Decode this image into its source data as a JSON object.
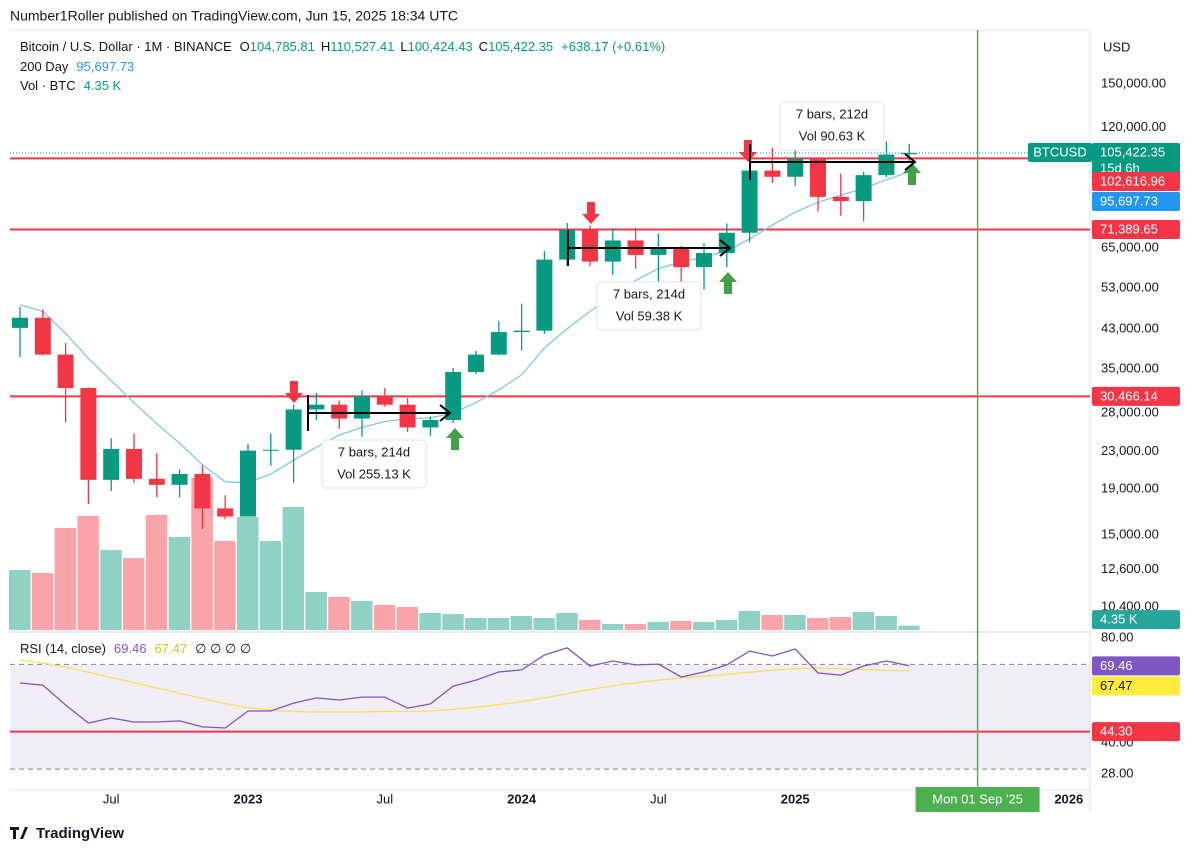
{
  "header": "Number1Roller published on TradingView.com, Jun 15, 2025 18:34 UTC",
  "footer": "TradingView",
  "currency": "USD",
  "chart_data": {
    "type": "candlestick",
    "legend": {
      "symbol": "Bitcoin / U.S. Dollar · 1M · BINANCE",
      "o_label": "O",
      "open": "104,785.81",
      "h_label": "H",
      "high": "110,527.41",
      "l_label": "L",
      "low": "100,424.43",
      "c_label": "C",
      "close": "105,422.35",
      "change": "+638.17 (+0.61%)"
    },
    "categories": [
      null,
      null,
      null,
      null,
      "Jul",
      null,
      null,
      null,
      null,
      null,
      "2023",
      null,
      null,
      null,
      null,
      null,
      "Jul",
      null,
      null,
      null,
      null,
      null,
      "2024",
      null,
      null,
      null,
      null,
      null,
      "Jul",
      null,
      null,
      null,
      null,
      null,
      "2025",
      null,
      null,
      null,
      null,
      null,
      null,
      null,
      "Mon 01 Sep '25",
      null,
      null,
      null,
      "2026"
    ],
    "open": [
      43200,
      45500,
      37700,
      31800,
      19900,
      23300,
      20000,
      19400,
      20500,
      17200,
      16500,
      23100,
      23200,
      28500,
      29200,
      27200,
      30500,
      29200,
      26000,
      27000,
      34500,
      37700,
      42300,
      42600,
      61200,
      71300,
      60600,
      67500,
      62700,
      64600,
      58900,
      63300,
      70200,
      96400,
      93400,
      102400,
      84300,
      82500,
      94200,
      104785.81,
      null,
      null,
      null,
      null,
      null,
      null,
      null
    ],
    "high": [
      48100,
      47400,
      40000,
      31900,
      24600,
      25200,
      22800,
      21000,
      21400,
      18400,
      23900,
      25200,
      29200,
      31000,
      29800,
      31400,
      31800,
      30200,
      27500,
      35200,
      38400,
      44700,
      48900,
      63900,
      73800,
      72800,
      71900,
      72000,
      70000,
      65600,
      66500,
      73600,
      99800,
      108300,
      109600,
      102500,
      95000,
      95800,
      111900,
      110527.41,
      null,
      null,
      null,
      null,
      null,
      null,
      null
    ],
    "low": [
      37200,
      37600,
      26700,
      17600,
      18800,
      19600,
      18200,
      18200,
      15500,
      16300,
      16500,
      21400,
      19600,
      27000,
      25800,
      24800,
      28900,
      25400,
      24900,
      26600,
      34100,
      37600,
      38500,
      41900,
      59300,
      59200,
      56600,
      58400,
      53500,
      49100,
      52500,
      58900,
      66800,
      90500,
      89200,
      78200,
      76600,
      74400,
      93300,
      100424.43,
      null,
      null,
      null,
      null,
      null,
      null,
      null
    ],
    "close": [
      45500,
      37700,
      31800,
      19900,
      23300,
      20000,
      19400,
      20500,
      17200,
      16500,
      23100,
      23200,
      28500,
      29200,
      27200,
      30500,
      29200,
      26000,
      27000,
      34500,
      37700,
      42300,
      42600,
      61200,
      71300,
      60600,
      67500,
      62700,
      64600,
      58900,
      63300,
      70200,
      96400,
      93400,
      102400,
      84300,
      82500,
      94200,
      104600,
      105422.35,
      null,
      null,
      null,
      null,
      null,
      null,
      null
    ],
    "up_color": "#089981",
    "down_color": "#f23645",
    "ylim": [
      9250,
      197500
    ],
    "log_scale": true,
    "yticks": [
      {
        "value": 150000,
        "label": "150,000.00"
      },
      {
        "value": 120000,
        "label": "120,000.00"
      },
      {
        "value": 65000,
        "label": "65,000.00"
      },
      {
        "value": 53000,
        "label": "53,000.00"
      },
      {
        "value": 43000,
        "label": "43,000.00"
      },
      {
        "value": 35000,
        "label": "35,000.00"
      },
      {
        "value": 28000,
        "label": "28,000.00"
      },
      {
        "value": 23000,
        "label": "23,000.00"
      },
      {
        "value": 19000,
        "label": "19,000.00"
      },
      {
        "value": 15000,
        "label": "15,000.00"
      },
      {
        "value": 12600,
        "label": "12,600.00"
      },
      {
        "value": 10400,
        "label": "10,400.00"
      }
    ],
    "ma": {
      "name": "200 Day",
      "color": "#7fc7e0",
      "label_color": "#2196f3",
      "value_label": "95,697.73",
      "values": [
        48600,
        47000,
        42000,
        37000,
        33000,
        29500,
        26500,
        24000,
        21500,
        19700,
        19600,
        20500,
        22000,
        23500,
        25000,
        26000,
        26800,
        27200,
        27300,
        28000,
        29500,
        31500,
        34000,
        39000,
        43000,
        47000,
        51000,
        55000,
        58500,
        60500,
        62000,
        64000,
        68000,
        73000,
        78000,
        82000,
        85000,
        88000,
        92000,
        95697.73,
        null,
        null,
        null,
        null,
        null,
        null,
        null
      ]
    },
    "volume": {
      "name": "Vol · BTC",
      "value_label": "4.35 K",
      "ylim": [
        0,
        160
      ],
      "values": [
        60,
        57,
        102,
        114,
        80,
        72,
        115,
        93,
        152,
        89,
        113,
        89,
        123,
        38,
        33,
        29,
        25,
        23,
        17,
        16,
        12,
        12,
        14,
        12,
        17,
        10,
        6,
        6,
        8,
        9,
        8,
        10,
        19,
        15,
        15,
        12,
        13,
        18,
        14,
        4.35,
        null,
        null,
        null,
        null,
        null,
        null,
        null
      ]
    },
    "levels": [
      {
        "value": 102616.96,
        "label": "102,616.96"
      },
      {
        "value": 71389.65,
        "label": "71,389.65"
      },
      {
        "value": 30466.14,
        "label": "30,466.14"
      }
    ],
    "level_color": "#f23645",
    "last_price": {
      "symbol": "BTCUSD",
      "value": 105422.35,
      "label": "105,422.35",
      "countdown": "15d 6h"
    },
    "marker_color": "#4caf50",
    "measures": [
      {
        "bars": "7 bars, 214d",
        "vol": "Vol 255.13 K"
      },
      {
        "bars": "7 bars, 214d",
        "vol": "Vol 59.38 K"
      },
      {
        "bars": "7 bars, 212d",
        "vol": "Vol 90.63 K"
      }
    ],
    "rsi": {
      "title": "RSI (14, close)",
      "color": "#7e57c2",
      "value_label": "69.46",
      "ma_color": "#f2e05a",
      "ma_label_color": "#ffeb3b",
      "ma_value_label": "67.47",
      "extra": "∅ ∅ ∅ ∅",
      "level": {
        "value": 44.3,
        "label": "44.30"
      },
      "bands": [
        70,
        30
      ],
      "ylim": [
        22,
        82
      ],
      "yticks": [
        {
          "value": 80,
          "label": "80.00"
        },
        {
          "value": 40,
          "label": "40.00"
        },
        {
          "value": 28,
          "label": "28.00"
        }
      ],
      "values": [
        62.9,
        62.1,
        54.5,
        47.6,
        49.5,
        48.0,
        48.0,
        48.4,
        46.1,
        45.7,
        52.2,
        52.2,
        55.2,
        57.2,
        56.4,
        57.5,
        57.5,
        53.3,
        54.9,
        61.7,
        64.0,
        67.1,
        67.9,
        73.6,
        76.3,
        69.4,
        71.3,
        69.8,
        70.1,
        65.2,
        67.1,
        69.8,
        75.1,
        73.2,
        75.9,
        66.7,
        65.9,
        69.4,
        71.3,
        69.46,
        null,
        null,
        null,
        null,
        null,
        null,
        null
      ],
      "ma_values": [
        71.7,
        70.5,
        69.0,
        67.0,
        65.0,
        63.0,
        61.0,
        59.0,
        57.0,
        55.0,
        53.5,
        52.5,
        52.0,
        51.8,
        51.8,
        51.8,
        52.0,
        52.0,
        52.2,
        52.8,
        53.6,
        54.6,
        55.8,
        57.2,
        58.8,
        60.4,
        61.8,
        63.0,
        64.0,
        64.8,
        65.5,
        66.2,
        67.0,
        67.8,
        68.4,
        68.6,
        68.4,
        68.0,
        67.7,
        67.47,
        null,
        null,
        null,
        null,
        null,
        null,
        null
      ]
    }
  }
}
